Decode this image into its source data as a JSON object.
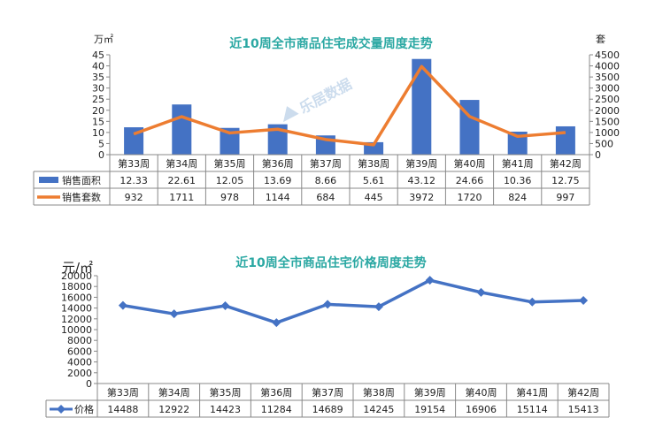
{
  "watermark": "乐居数据",
  "chart_data": [
    {
      "type": "bar",
      "title": "近10周全市商品住宅成交量周度走势",
      "ylabel_left": "万㎡",
      "ylabel_right": "套",
      "ylim_left": [
        0,
        45
      ],
      "yticks_left": [
        0,
        5,
        10,
        15,
        20,
        25,
        30,
        35,
        40,
        45
      ],
      "ylim_right": [
        0,
        4500
      ],
      "yticks_right": [
        0,
        500,
        1000,
        1500,
        2000,
        2500,
        3000,
        3500,
        4000,
        4500
      ],
      "categories": [
        "第33周",
        "第34周",
        "第35周",
        "第36周",
        "第37周",
        "第38周",
        "第39周",
        "第40周",
        "第41周",
        "第42周"
      ],
      "series": [
        {
          "name": "销售面积",
          "type": "bar",
          "axis": "left",
          "color": "#4472c4",
          "values": [
            12.33,
            22.61,
            12.05,
            13.69,
            8.66,
            5.61,
            43.12,
            24.66,
            10.36,
            12.75
          ]
        },
        {
          "name": "销售套数",
          "type": "line",
          "axis": "right",
          "color": "#ed7d31",
          "values": [
            932,
            1711,
            978,
            1144,
            684,
            445,
            3972,
            1720,
            824,
            997
          ]
        }
      ],
      "grid": false,
      "data_table": true
    },
    {
      "type": "line",
      "title": "近10周全市商品住宅价格周度走势",
      "ylabel": "元/㎡",
      "ylim": [
        0,
        20000
      ],
      "yticks": [
        0,
        2000,
        4000,
        6000,
        8000,
        10000,
        12000,
        14000,
        16000,
        18000,
        20000
      ],
      "categories": [
        "第33周",
        "第34周",
        "第35周",
        "第36周",
        "第37周",
        "第38周",
        "第39周",
        "第40周",
        "第41周",
        "第42周"
      ],
      "series": [
        {
          "name": "价格",
          "type": "line",
          "color": "#4472c4",
          "values": [
            14488,
            12922,
            14423,
            11284,
            14689,
            14245,
            19154,
            16906,
            15114,
            15413
          ]
        }
      ],
      "grid": false,
      "data_table": true
    }
  ]
}
